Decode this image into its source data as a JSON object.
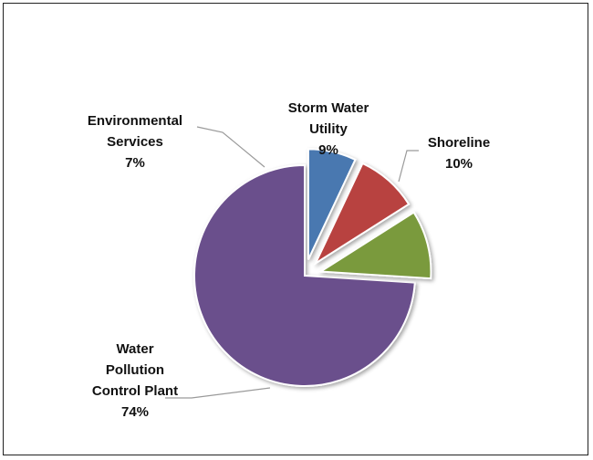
{
  "chart_data": {
    "type": "pie",
    "title": "",
    "slices": [
      {
        "name": "Water Pollution Control Plant",
        "label_lines": [
          "Water",
          "Pollution",
          "Control Plant"
        ],
        "value": 74,
        "pct_label": "74%",
        "color": "#6b4f8c",
        "exploded": false
      },
      {
        "name": "Environmental Services",
        "label_lines": [
          "Environmental",
          "Services"
        ],
        "value": 7,
        "pct_label": "7%",
        "color": "#4a78b0",
        "exploded": true
      },
      {
        "name": "Storm Water Utility",
        "label_lines": [
          "Storm Water",
          "Utility"
        ],
        "value": 9,
        "pct_label": "9%",
        "color": "#b84240",
        "exploded": true
      },
      {
        "name": "Shoreline",
        "label_lines": [
          "Shoreline"
        ],
        "value": 10,
        "pct_label": "10%",
        "color": "#7a9a3e",
        "exploded": true
      }
    ]
  }
}
